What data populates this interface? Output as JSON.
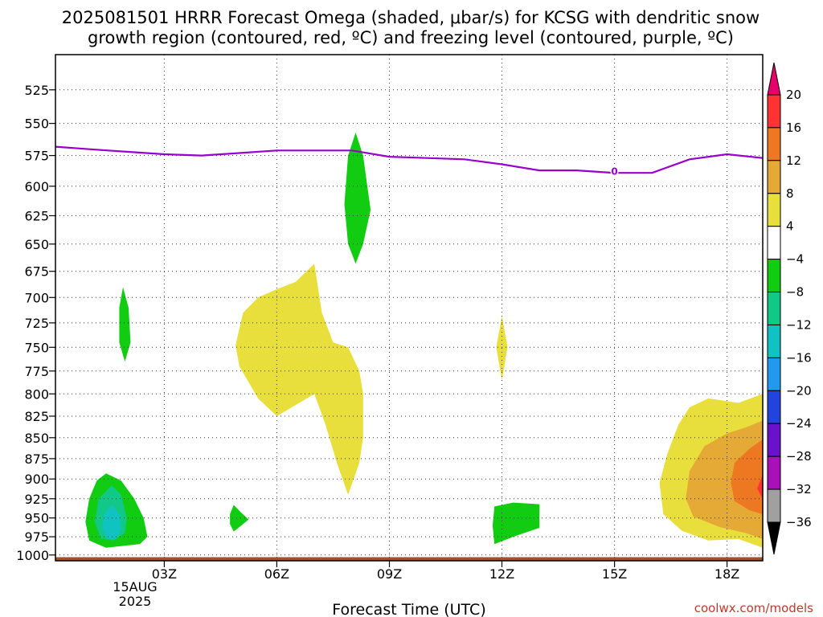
{
  "chart_data": {
    "type": "heatmap",
    "title_line1": "2025081501 HRRR Forecast Omega (shaded, μbar/s) for KCSG with dendritic snow",
    "title_line2": "growth region (contoured, red, ºC) and freezing level (contoured, purple, ºC)",
    "xlabel": "Forecast Time (UTC)",
    "x_unit": "hours since 2025-08-15 00Z",
    "xlim": [
      0.1,
      18.95
    ],
    "ylim": [
      1008,
      500
    ],
    "y_scale": "pressure (hPa), log",
    "x_ticks": [
      {
        "x": 3,
        "label": "03Z"
      },
      {
        "x": 6,
        "label": "06Z"
      },
      {
        "x": 9,
        "label": "09Z"
      },
      {
        "x": 12,
        "label": "12Z"
      },
      {
        "x": 15,
        "label": "15Z"
      },
      {
        "x": 18,
        "label": "18Z"
      }
    ],
    "date_label": [
      "15AUG",
      "2025"
    ],
    "y_ticks": [
      525,
      550,
      575,
      600,
      625,
      650,
      675,
      700,
      725,
      750,
      775,
      800,
      825,
      850,
      875,
      900,
      925,
      950,
      975,
      1000
    ],
    "grid": true,
    "colorbar": {
      "top_arrow_color": "#e8006a",
      "bottom_arrow_color": "#000000",
      "segments": [
        {
          "color": "#ff3333"
        },
        {
          "color": "#ee7722"
        },
        {
          "color": "#e5a935"
        },
        {
          "color": "#e8de3c"
        },
        {
          "color": "#ffffff"
        },
        {
          "color": "#11cc11"
        },
        {
          "color": "#11c888"
        },
        {
          "color": "#11c2c2"
        },
        {
          "color": "#2299ee"
        },
        {
          "color": "#2244dd"
        },
        {
          "color": "#6a11cc"
        },
        {
          "color": "#a811b8"
        },
        {
          "color": "#a0a0a0"
        }
      ],
      "tick_labels": [
        "20",
        "16",
        "12",
        "8",
        "4",
        "−4",
        "−8",
        "−12",
        "−16",
        "−20",
        "−24",
        "−28",
        "−32",
        "−36"
      ]
    },
    "freezing_level": {
      "name": "freezing level",
      "color": "#9900cc",
      "label": "0",
      "label_at": {
        "x": 15.0,
        "y": 588
      },
      "points": [
        [
          0.1,
          568
        ],
        [
          1,
          570
        ],
        [
          2,
          572
        ],
        [
          3,
          574
        ],
        [
          4,
          575
        ],
        [
          5,
          573
        ],
        [
          6,
          571
        ],
        [
          7,
          571
        ],
        [
          8,
          571
        ],
        [
          9,
          576
        ],
        [
          10,
          577
        ],
        [
          11,
          578
        ],
        [
          12,
          582
        ],
        [
          13,
          587
        ],
        [
          14,
          587
        ],
        [
          15,
          589
        ],
        [
          16,
          589
        ],
        [
          17,
          578
        ],
        [
          18,
          574
        ],
        [
          19,
          577
        ]
      ]
    },
    "omega_regions": [
      {
        "level": "up -4 to -8",
        "color": "#11cc11",
        "points": [
          [
            8.1,
            557
          ],
          [
            8.3,
            575
          ],
          [
            8.5,
            620
          ],
          [
            8.3,
            650
          ],
          [
            8.1,
            668
          ],
          [
            7.9,
            650
          ],
          [
            7.8,
            615
          ],
          [
            7.9,
            575
          ]
        ]
      },
      {
        "level": "up -4 to -8",
        "color": "#11cc11",
        "points": [
          [
            1.9,
            690
          ],
          [
            2.05,
            710
          ],
          [
            2.1,
            745
          ],
          [
            1.95,
            765
          ],
          [
            1.8,
            745
          ],
          [
            1.8,
            710
          ]
        ]
      },
      {
        "level": "up -4 to -8",
        "color": "#11cc11",
        "points": [
          [
            1.45,
            893
          ],
          [
            1.85,
            902
          ],
          [
            2.2,
            925
          ],
          [
            2.45,
            950
          ],
          [
            2.55,
            975
          ],
          [
            2.35,
            985
          ],
          [
            1.45,
            990
          ],
          [
            1.0,
            980
          ],
          [
            0.9,
            955
          ],
          [
            1.0,
            925
          ],
          [
            1.2,
            902
          ]
        ]
      },
      {
        "level": "up -8 to -12",
        "color": "#11c888",
        "points": [
          [
            1.6,
            908
          ],
          [
            1.85,
            920
          ],
          [
            2.0,
            950
          ],
          [
            1.95,
            970
          ],
          [
            1.65,
            980
          ],
          [
            1.3,
            977
          ],
          [
            1.15,
            955
          ],
          [
            1.25,
            925
          ]
        ]
      },
      {
        "level": "up -12 to -16",
        "color": "#11c2c2",
        "points": [
          [
            1.6,
            933
          ],
          [
            1.8,
            945
          ],
          [
            1.85,
            965
          ],
          [
            1.7,
            978
          ],
          [
            1.5,
            978
          ],
          [
            1.35,
            965
          ],
          [
            1.4,
            945
          ]
        ]
      },
      {
        "level": "up -4 to -8",
        "color": "#11cc11",
        "points": [
          [
            4.85,
            933
          ],
          [
            5.05,
            943
          ],
          [
            5.25,
            952
          ],
          [
            5.05,
            960
          ],
          [
            4.85,
            968
          ],
          [
            4.75,
            958
          ],
          [
            4.75,
            945
          ]
        ]
      },
      {
        "level": "up -4 to -8",
        "color": "#11cc11",
        "points": [
          [
            11.8,
            935
          ],
          [
            12.3,
            930
          ],
          [
            13.0,
            932
          ],
          [
            13.0,
            963
          ],
          [
            12.3,
            975
          ],
          [
            11.8,
            985
          ],
          [
            11.75,
            960
          ]
        ]
      },
      {
        "level": "down 4 to 8",
        "color": "#e8de3c",
        "points": [
          [
            7.0,
            668
          ],
          [
            7.2,
            715
          ],
          [
            7.5,
            745
          ],
          [
            7.9,
            750
          ],
          [
            8.2,
            775
          ],
          [
            8.3,
            800
          ],
          [
            8.3,
            850
          ],
          [
            8.2,
            880
          ],
          [
            7.9,
            920
          ],
          [
            7.6,
            880
          ],
          [
            7.3,
            835
          ],
          [
            7.0,
            800
          ],
          [
            6.6,
            810
          ],
          [
            6.0,
            825
          ],
          [
            5.5,
            805
          ],
          [
            5.0,
            770
          ],
          [
            4.9,
            748
          ],
          [
            5.1,
            715
          ],
          [
            5.5,
            700
          ],
          [
            6.0,
            692
          ],
          [
            6.5,
            685
          ]
        ]
      },
      {
        "level": "down 4 to 8",
        "color": "#e8de3c",
        "points": [
          [
            12.0,
            718
          ],
          [
            12.15,
            750
          ],
          [
            12.0,
            785
          ],
          [
            11.85,
            750
          ]
        ]
      },
      {
        "level": "down 4 to 8",
        "color": "#e8de3c",
        "points": [
          [
            17.0,
            815
          ],
          [
            17.5,
            805
          ],
          [
            18.3,
            810
          ],
          [
            19,
            800
          ],
          [
            19,
            990
          ],
          [
            18.3,
            978
          ],
          [
            17.5,
            980
          ],
          [
            16.8,
            967
          ],
          [
            16.3,
            945
          ],
          [
            16.2,
            905
          ],
          [
            16.4,
            870
          ],
          [
            16.7,
            835
          ]
        ]
      },
      {
        "level": "down 8 to 12",
        "color": "#e5a935",
        "points": [
          [
            18.0,
            845
          ],
          [
            18.5,
            838
          ],
          [
            19,
            830
          ],
          [
            19,
            978
          ],
          [
            18.5,
            970
          ],
          [
            17.8,
            962
          ],
          [
            17.1,
            948
          ],
          [
            16.9,
            925
          ],
          [
            17.0,
            890
          ],
          [
            17.4,
            860
          ]
        ]
      },
      {
        "level": "down 12 to 16",
        "color": "#ee7722",
        "points": [
          [
            18.6,
            863
          ],
          [
            19,
            852
          ],
          [
            19,
            945
          ],
          [
            18.6,
            940
          ],
          [
            18.2,
            928
          ],
          [
            18.1,
            905
          ],
          [
            18.2,
            880
          ]
        ]
      },
      {
        "level": "down 16 to 20",
        "color": "#ff3333",
        "points": [
          [
            19,
            895
          ],
          [
            19,
            925
          ],
          [
            18.8,
            912
          ]
        ]
      }
    ],
    "surface": {
      "color": "#a0522d",
      "y": 1003
    }
  },
  "credit": "coolwx.com/models"
}
